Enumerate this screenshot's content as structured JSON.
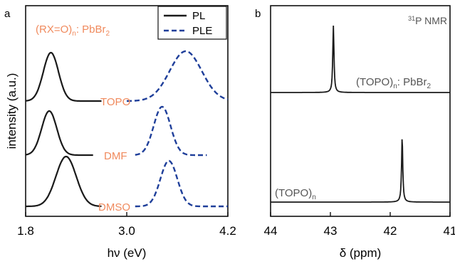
{
  "colors": {
    "axis": "#111111",
    "pl": "#1a1a1a",
    "ple": "#1f3f9a",
    "label_orange": "#f08a5d",
    "text_gray": "#555555"
  },
  "chart_data": [
    {
      "panel_label": "a",
      "type": "line",
      "title": "(RX=O)",
      "title_sub": "n",
      "title_suffix": ": PbBr",
      "title_sub2": "2",
      "xlabel": "hν (eV)",
      "ylabel": "intensity (a.u.)",
      "xlim": [
        1.8,
        4.2
      ],
      "x_ticks": [
        1.8,
        3.0,
        4.2
      ],
      "x_tick_labels": [
        "1.8",
        "3.0",
        "4.2"
      ],
      "legend_position": "top-right",
      "legend": [
        {
          "label": "PL",
          "style": "solid"
        },
        {
          "label": "PLE",
          "style": "dashed"
        }
      ],
      "stack_order": [
        "TOPO",
        "DMF",
        "DMSO"
      ],
      "series": [
        {
          "sample": "TOPO",
          "kind": "PL",
          "peak": 2.1,
          "sigma": 0.09,
          "x_range": [
            1.8,
            2.7
          ]
        },
        {
          "sample": "TOPO",
          "kind": "PLE",
          "peak": 3.7,
          "sigma": 0.19,
          "x_range": [
            3.0,
            4.2
          ]
        },
        {
          "sample": "DMF",
          "kind": "PL",
          "peak": 2.08,
          "sigma": 0.09,
          "x_range": [
            1.8,
            2.6
          ]
        },
        {
          "sample": "DMF",
          "kind": "PLE",
          "peak": 3.42,
          "sigma": 0.1,
          "x_range": [
            3.1,
            3.95
          ]
        },
        {
          "sample": "DMSO",
          "kind": "PL",
          "peak": 2.28,
          "sigma": 0.12,
          "x_range": [
            1.8,
            2.7
          ]
        },
        {
          "sample": "DMSO",
          "kind": "PLE",
          "peak": 3.5,
          "sigma": 0.1,
          "x_range": [
            3.1,
            4.2
          ]
        }
      ],
      "sample_labels": [
        "TOPO",
        "DMF",
        "DMSO"
      ]
    },
    {
      "panel_label": "b",
      "type": "line",
      "title_sup": "31",
      "title": "P NMR",
      "xlabel": "δ (ppm)",
      "xlim": [
        44,
        41
      ],
      "x_ticks": [
        44,
        43,
        42,
        41
      ],
      "x_tick_labels": [
        "44",
        "43",
        "42",
        "41"
      ],
      "series": [
        {
          "name_main": "(TOPO)",
          "name_sub": "n",
          "name_suffix": ": PbBr",
          "name_sub2": "2",
          "peak_ppm": 42.95
        },
        {
          "name_main": "(TOPO)",
          "name_sub": "n",
          "name_suffix": "",
          "name_sub2": "",
          "peak_ppm": 41.8
        }
      ]
    }
  ]
}
